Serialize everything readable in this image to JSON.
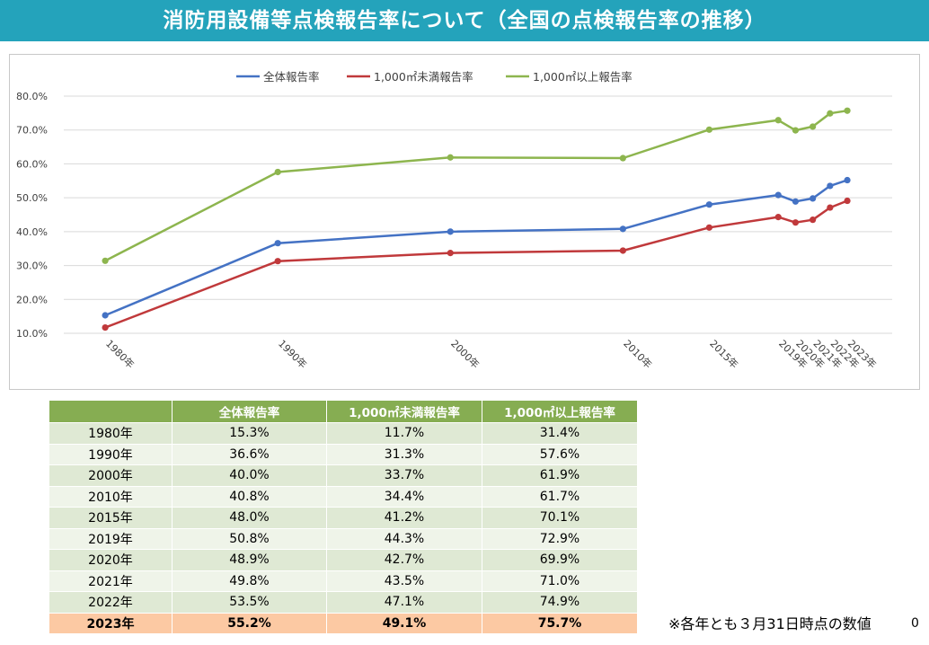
{
  "title": "消防用設備等点検報告率について（全国の点検報告率の推移）",
  "chart_data": {
    "type": "line",
    "categories": [
      "1980年",
      "1990年",
      "2000年",
      "2010年",
      "2015年",
      "2019年",
      "2020年",
      "2021年",
      "2022年",
      "2023年"
    ],
    "x": [
      1980,
      1990,
      2000,
      2010,
      2015,
      2019,
      2020,
      2021,
      2022,
      2023
    ],
    "series": [
      {
        "name": "全体報告率",
        "color": "#4472c4",
        "values": [
          15.3,
          36.6,
          40.0,
          40.8,
          48.0,
          50.8,
          48.9,
          49.8,
          53.5,
          55.2
        ]
      },
      {
        "name": "1,000㎡未満報告率",
        "color": "#c0393b",
        "values": [
          11.7,
          31.3,
          33.7,
          34.4,
          41.2,
          44.3,
          42.7,
          43.5,
          47.1,
          49.1
        ]
      },
      {
        "name": "1,000㎡以上報告率",
        "color": "#8db54e",
        "values": [
          31.4,
          57.6,
          61.9,
          61.7,
          70.1,
          72.9,
          69.9,
          71.0,
          74.9,
          75.7
        ]
      }
    ],
    "yticks": [
      "10.0%",
      "20.0%",
      "30.0%",
      "40.0%",
      "50.0%",
      "60.0%",
      "70.0%",
      "80.0%"
    ],
    "ylim": [
      10,
      80
    ],
    "grid": true,
    "legend": "top-center"
  },
  "table": {
    "headers": [
      "",
      "全体報告率",
      "1,000㎡未満報告率",
      "1,000㎡以上報告率"
    ],
    "rows": [
      [
        "1980年",
        "15.3%",
        "11.7%",
        "31.4%"
      ],
      [
        "1990年",
        "36.6%",
        "31.3%",
        "57.6%"
      ],
      [
        "2000年",
        "40.0%",
        "33.7%",
        "61.9%"
      ],
      [
        "2010年",
        "40.8%",
        "34.4%",
        "61.7%"
      ],
      [
        "2015年",
        "48.0%",
        "41.2%",
        "70.1%"
      ],
      [
        "2019年",
        "50.8%",
        "44.3%",
        "72.9%"
      ],
      [
        "2020年",
        "48.9%",
        "42.7%",
        "69.9%"
      ],
      [
        "2021年",
        "49.8%",
        "43.5%",
        "71.0%"
      ],
      [
        "2022年",
        "53.5%",
        "47.1%",
        "74.9%"
      ],
      [
        "2023年",
        "55.2%",
        "49.1%",
        "75.7%"
      ]
    ]
  },
  "footnote": "※各年とも３月31日時点の数値",
  "page_number": "0"
}
